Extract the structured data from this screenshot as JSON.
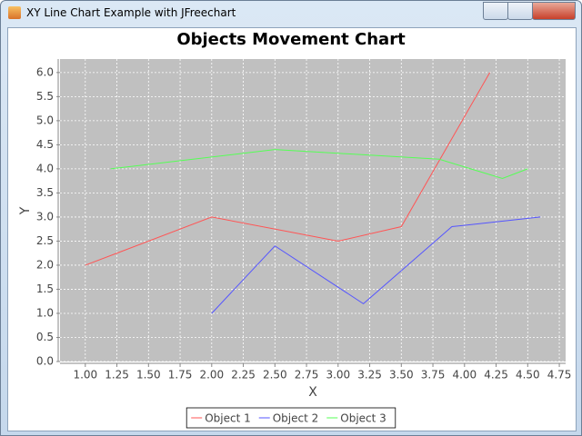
{
  "window": {
    "title": "XY Line Chart Example with JFreechart"
  },
  "chart_data": {
    "type": "line",
    "title": "Objects Movement Chart",
    "x_label": "X",
    "y_label": "Y",
    "xlim": [
      0.8,
      4.8
    ],
    "ylim": [
      0,
      6.28
    ],
    "xticks": [
      {
        "value": 1,
        "label": "1.00"
      },
      1.25,
      {
        "value": 1.5,
        "label": "1.50"
      },
      1.75,
      {
        "value": 2,
        "label": "2.00"
      },
      2.25,
      {
        "value": 2.5,
        "label": "2.50"
      },
      2.75,
      {
        "value": 3,
        "label": "3.00"
      },
      3.25,
      {
        "value": 3.5,
        "label": "3.50"
      },
      3.75,
      {
        "value": 4,
        "label": "4.00"
      },
      4.25,
      {
        "value": 4.5,
        "label": "4.50"
      },
      4.75
    ],
    "yticks": [
      {
        "value": 0,
        "label": "0.0"
      },
      0.5,
      {
        "value": 1,
        "label": "1.0"
      },
      1.5,
      {
        "value": 2,
        "label": "2.0"
      },
      2.5,
      {
        "value": 3,
        "label": "3.0"
      },
      3.5,
      {
        "value": 4,
        "label": "4.0"
      },
      4.5,
      {
        "value": 5,
        "label": "5.0"
      },
      5.5,
      {
        "value": 6,
        "label": "6.0"
      }
    ],
    "grid": true,
    "background": "#c0c0c0",
    "legend": "bottom",
    "series": [
      {
        "name": "Object 1",
        "color": "#ff5555",
        "x": [
          1,
          2,
          3,
          3.5,
          4.2
        ],
        "values": [
          2,
          3,
          2.5,
          2.8,
          6
        ]
      },
      {
        "name": "Object 2",
        "color": "#5555ff",
        "x": [
          2,
          2.5,
          3.2,
          3.9,
          4.6
        ],
        "values": [
          1,
          2.4,
          1.2,
          2.8,
          3
        ]
      },
      {
        "name": "Object 3",
        "color": "#55ff55",
        "x": [
          1.2,
          2.5,
          3.8,
          4.3,
          4.5
        ],
        "values": [
          4,
          4.4,
          4.2,
          3.8,
          4
        ]
      }
    ]
  }
}
